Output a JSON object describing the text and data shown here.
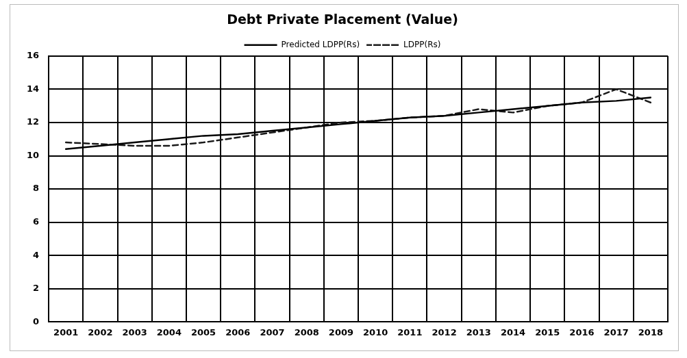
{
  "chart_data": {
    "type": "line",
    "title": "Debt Private Placement (Value)",
    "categories": [
      "2001",
      "2002",
      "2003",
      "2004",
      "2005",
      "2006",
      "2007",
      "2008",
      "2009",
      "2010",
      "2011",
      "2012",
      "2013",
      "2014",
      "2015",
      "2016",
      "2017",
      "2018"
    ],
    "series": [
      {
        "name": "Predicted LDPP(Rs)",
        "color": "#000000",
        "line_style": "solid",
        "values": [
          10.4,
          10.6,
          10.8,
          11.0,
          11.2,
          11.3,
          11.5,
          11.7,
          11.9,
          12.1,
          12.3,
          12.4,
          12.6,
          12.8,
          13.0,
          13.2,
          13.3,
          13.5
        ]
      },
      {
        "name": "LDPP(Rs)",
        "color": "#1a1a1a",
        "line_style": "dashed",
        "values": [
          10.8,
          10.7,
          10.6,
          10.6,
          10.8,
          11.1,
          11.4,
          11.7,
          12.0,
          12.1,
          12.3,
          12.4,
          12.8,
          12.6,
          13.0,
          13.2,
          14.0,
          13.2
        ]
      }
    ],
    "ylim": [
      0,
      16
    ],
    "yticks": [
      0,
      2,
      4,
      6,
      8,
      10,
      12,
      14,
      16
    ],
    "grid": true,
    "legend": "top",
    "marker": "none"
  }
}
